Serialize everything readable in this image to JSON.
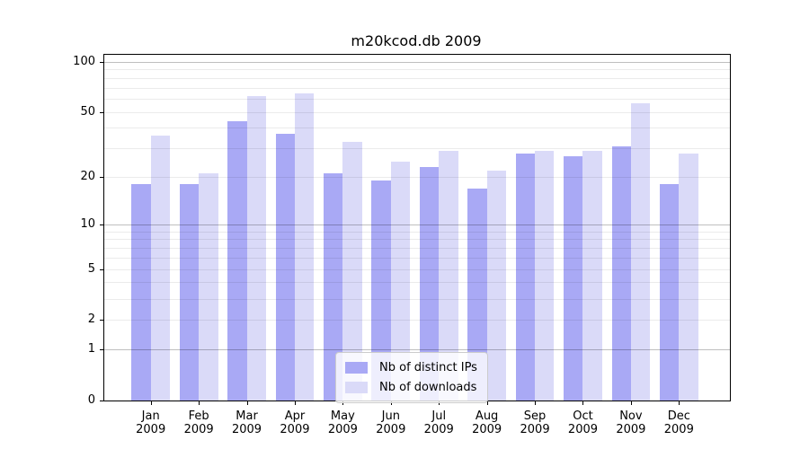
{
  "title": "m20kcod.db 2009",
  "colors": {
    "ips_bar": "#a9a9f5",
    "downloads_bar": "#dadaf8",
    "axis_line": "#000000",
    "legend_border": "#cccccc",
    "background": "#ffffff"
  },
  "legend": {
    "position": "lower center",
    "items": [
      "Nb of distinct IPs",
      "Nb of downloads"
    ]
  },
  "chart_data": {
    "type": "bar",
    "title": "m20kcod.db 2009",
    "categories": [
      "Jan 2009",
      "Feb 2009",
      "Mar 2009",
      "Apr 2009",
      "May 2009",
      "Jun 2009",
      "Jul 2009",
      "Aug 2009",
      "Sep 2009",
      "Oct 2009",
      "Nov 2009",
      "Dec 2009"
    ],
    "series": [
      {
        "name": "Nb of distinct IPs",
        "values": [
          18,
          18,
          44,
          37,
          21,
          19,
          23,
          17,
          28,
          27,
          31,
          18
        ]
      },
      {
        "name": "Nb of downloads",
        "values": [
          36,
          21,
          62,
          65,
          33,
          25,
          29,
          22,
          29,
          29,
          56,
          28
        ]
      }
    ],
    "yscale": "log1p",
    "ylim": [
      0,
      110
    ],
    "y_ticks": [
      0,
      1,
      2,
      5,
      10,
      20,
      50,
      100
    ],
    "y_major_gridlines": [
      1,
      10,
      100
    ],
    "y_minor_gridlines": [
      2,
      3,
      4,
      5,
      6,
      7,
      8,
      9,
      20,
      30,
      40,
      50,
      60,
      70,
      80,
      90
    ],
    "grid": true,
    "legend_position": "lower center"
  }
}
